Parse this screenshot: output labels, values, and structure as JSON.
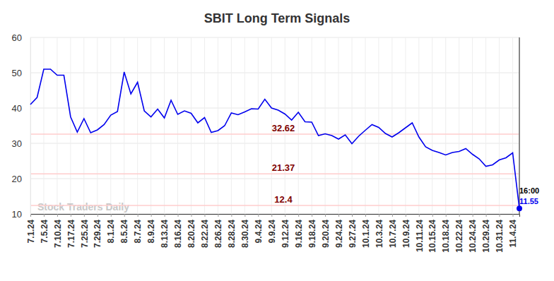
{
  "chart_data": {
    "type": "line",
    "title": "SBIT Long Term Signals",
    "watermark": "Stock Traders Daily",
    "annotations": [
      "16:00"
    ],
    "reference_lines": [
      32.62,
      21.37,
      12.4
    ],
    "color": "#0000ee",
    "grid": true,
    "ylim": [
      10,
      60
    ],
    "yticks": [
      10,
      20,
      30,
      40,
      50,
      60
    ],
    "categories": [
      "7.1.24",
      null,
      "7.5.24",
      null,
      "7.10.24",
      null,
      "7.17.24",
      null,
      "7.25.24",
      null,
      "7.29.24",
      null,
      "8.1.24",
      null,
      "8.5.24",
      null,
      "8.7.24",
      null,
      "8.9.24",
      null,
      "8.13.24",
      null,
      "8.16.24",
      null,
      "8.20.24",
      null,
      "8.22.24",
      null,
      "8.26.24",
      null,
      "8.28.24",
      null,
      "8.30.24",
      null,
      "9.4.24",
      null,
      "9.9.24",
      null,
      "9.12.24",
      null,
      "9.16.24",
      null,
      "9.18.24",
      null,
      "9.20.24",
      null,
      "9.24.24",
      null,
      "9.27.24",
      null,
      "10.1.24",
      null,
      "10.3.24",
      null,
      "10.7.24",
      null,
      "10.9.24",
      null,
      "10.11.24",
      null,
      "10.15.24",
      null,
      "10.18.24",
      null,
      "10.22.24",
      null,
      "10.24.24",
      null,
      "10.29.24",
      null,
      "10.31.24",
      null,
      "11.4.24",
      null
    ],
    "values": [
      41,
      43,
      51,
      51,
      49.3,
      49.3,
      37.5,
      33.2,
      37,
      33,
      33.8,
      35.3,
      38,
      39,
      50.2,
      44,
      47.3,
      39.2,
      37.5,
      39.7,
      37.2,
      42.2,
      38.2,
      39.2,
      38.5,
      35.8,
      37.3,
      33.1,
      33.6,
      35,
      38.6,
      38.1,
      38.9,
      39.8,
      39.7,
      42.5,
      40,
      39.4,
      38.3,
      36.6,
      38.8,
      36.1,
      36,
      32.2,
      32.7,
      32.2,
      31.2,
      32.4,
      29.9,
      32,
      33.7,
      35.3,
      34.5,
      32.8,
      31.8,
      33,
      34.4,
      35.8,
      31.8,
      29,
      28,
      27.4,
      26.7,
      27.4,
      27.7,
      28.5,
      26.9,
      25.6,
      23.5,
      23.9,
      25.3,
      25.9,
      27.3,
      11.55
    ]
  }
}
